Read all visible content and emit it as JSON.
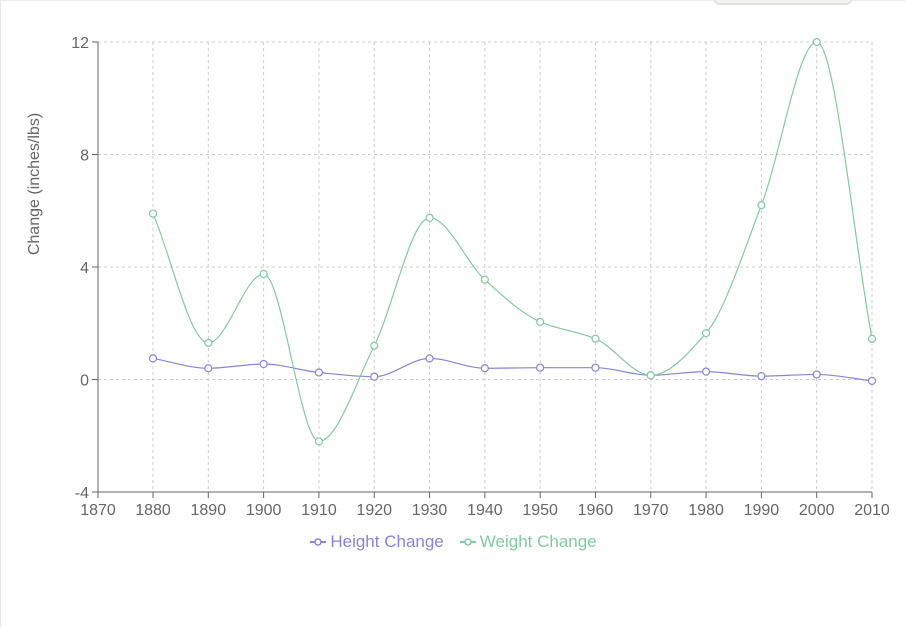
{
  "chart_data": {
    "type": "line",
    "x": [
      1880,
      1890,
      1900,
      1910,
      1920,
      1930,
      1940,
      1950,
      1960,
      1970,
      1980,
      1990,
      2000,
      2010
    ],
    "xlim": [
      1870,
      2010
    ],
    "x_ticks": [
      1870,
      1880,
      1890,
      1900,
      1910,
      1920,
      1930,
      1940,
      1950,
      1960,
      1970,
      1980,
      1990,
      2000,
      2010
    ],
    "ylim": [
      -4,
      12
    ],
    "y_ticks": [
      -4,
      0,
      4,
      8,
      12
    ],
    "ylabel": "Change (inches/lbs)",
    "xlabel": "",
    "grid": true,
    "legend_position": "bottom",
    "series": [
      {
        "name": "Height Change",
        "color": "#8884d8",
        "values": [
          0.75,
          0.4,
          0.55,
          0.25,
          0.1,
          0.75,
          0.4,
          0.42,
          0.42,
          0.15,
          0.28,
          0.12,
          0.18,
          -0.05
        ]
      },
      {
        "name": "Weight Change",
        "color": "#82ca9d",
        "values": [
          5.9,
          1.3,
          3.75,
          -2.2,
          1.2,
          5.75,
          3.55,
          2.05,
          1.45,
          0.15,
          1.65,
          6.2,
          12.0,
          1.45
        ]
      }
    ]
  }
}
